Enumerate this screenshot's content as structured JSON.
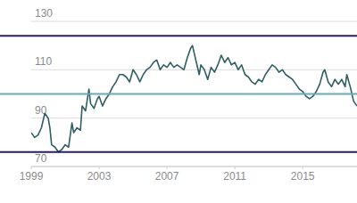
{
  "chart_data": {
    "type": "line",
    "x": [
      1999.0,
      1999.2,
      1999.4,
      1999.6,
      1999.8,
      2000.0,
      2000.1,
      2000.2,
      2000.4,
      2000.6,
      2000.8,
      2001.0,
      2001.2,
      2001.4,
      2001.5,
      2001.7,
      2001.9,
      2002.0,
      2002.2,
      2002.4,
      2002.5,
      2002.7,
      2002.9,
      2003.0,
      2003.2,
      2003.4,
      2003.6,
      2003.8,
      2004.0,
      2004.2,
      2004.4,
      2004.6,
      2004.8,
      2005.0,
      2005.2,
      2005.4,
      2005.6,
      2005.8,
      2006.0,
      2006.2,
      2006.4,
      2006.6,
      2006.8,
      2007.0,
      2007.2,
      2007.4,
      2007.6,
      2007.8,
      2008.0,
      2008.2,
      2008.4,
      2008.5,
      2008.7,
      2008.9,
      2009.0,
      2009.2,
      2009.4,
      2009.6,
      2009.8,
      2010.0,
      2010.2,
      2010.4,
      2010.6,
      2010.8,
      2011.0,
      2011.2,
      2011.4,
      2011.6,
      2011.8,
      2012.0,
      2012.2,
      2012.4,
      2012.6,
      2012.8,
      2013.0,
      2013.2,
      2013.4,
      2013.6,
      2013.8,
      2014.0,
      2014.2,
      2014.4,
      2014.6,
      2014.8,
      2015.0,
      2015.2,
      2015.4,
      2015.6,
      2015.8,
      2016.0,
      2016.2,
      2016.3,
      2016.5,
      2016.7,
      2016.9,
      2017.1,
      2017.3,
      2017.5,
      2017.6,
      2017.8,
      2018.0,
      2018.1,
      2018.2
    ],
    "values": [
      84,
      82,
      83,
      86,
      92,
      90,
      86,
      79,
      78,
      76,
      77,
      79,
      78,
      88,
      84,
      86,
      85,
      95,
      93,
      102,
      96,
      94,
      98,
      99,
      95,
      98,
      100,
      103,
      105,
      108,
      108,
      107,
      105,
      110,
      108,
      105,
      108,
      110,
      111,
      113,
      114,
      110,
      112,
      111,
      113,
      111,
      112,
      111,
      110,
      115,
      119,
      120,
      114,
      108,
      112,
      110,
      106,
      111,
      109,
      112,
      116,
      113,
      115,
      112,
      113,
      110,
      112,
      108,
      107,
      105,
      104,
      106,
      105,
      108,
      110,
      112,
      111,
      109,
      110,
      108,
      107,
      106,
      104,
      102,
      101,
      99,
      98,
      99,
      101,
      104,
      109,
      110,
      105,
      103,
      106,
      104,
      106,
      103,
      108,
      103,
      97,
      96,
      95
    ],
    "color": "#2f5f63",
    "xlim": [
      1999,
      2018.2
    ],
    "xticks": [
      1999,
      2003,
      2007,
      2011,
      2015
    ],
    "ylim": [
      70,
      130
    ],
    "yticks": [
      70,
      90,
      110,
      130
    ],
    "grid": true,
    "reference_lines": [
      {
        "value": 124,
        "color": "#2b1a72"
      },
      {
        "value": 100,
        "color": "#6aaab8"
      },
      {
        "value": 76,
        "color": "#2b1a72"
      }
    ]
  }
}
